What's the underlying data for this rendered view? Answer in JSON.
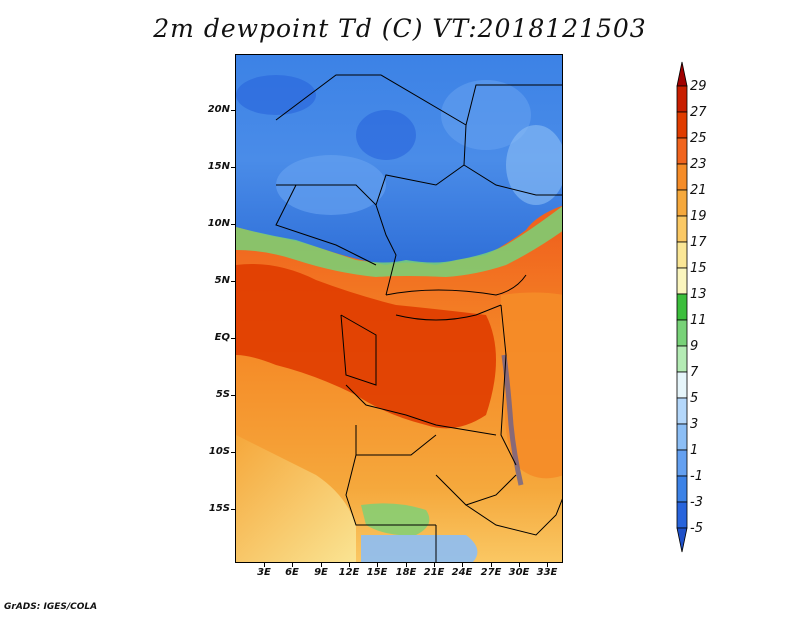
{
  "title": "2m dewpoint Td (C) VT:2018121503",
  "footer": "GrADS: IGES/COLA",
  "map": {
    "lat_labels": [
      "20N",
      "15N",
      "10N",
      "5N",
      "EQ",
      "5S",
      "10S",
      "15S"
    ],
    "lon_labels": [
      "3E",
      "6E",
      "9E",
      "12E",
      "15E",
      "18E",
      "21E",
      "24E",
      "27E",
      "30E",
      "33E"
    ]
  },
  "colorbar": {
    "levels": [
      "29",
      "27",
      "25",
      "23",
      "21",
      "19",
      "17",
      "15",
      "13",
      "11",
      "9",
      "7",
      "5",
      "3",
      "1",
      "-1",
      "-3",
      "-5"
    ],
    "colors": [
      "#a00000",
      "#c81e00",
      "#e03c00",
      "#f0641e",
      "#f58c28",
      "#f5a83c",
      "#fac864",
      "#fae696",
      "#faf5be",
      "#3cbe3c",
      "#78d278",
      "#b4ebb4",
      "#e6f5fa",
      "#b4d7fa",
      "#8cbef5",
      "#64a0f0",
      "#3c82e6",
      "#2864dc",
      "#1e50c8"
    ]
  }
}
